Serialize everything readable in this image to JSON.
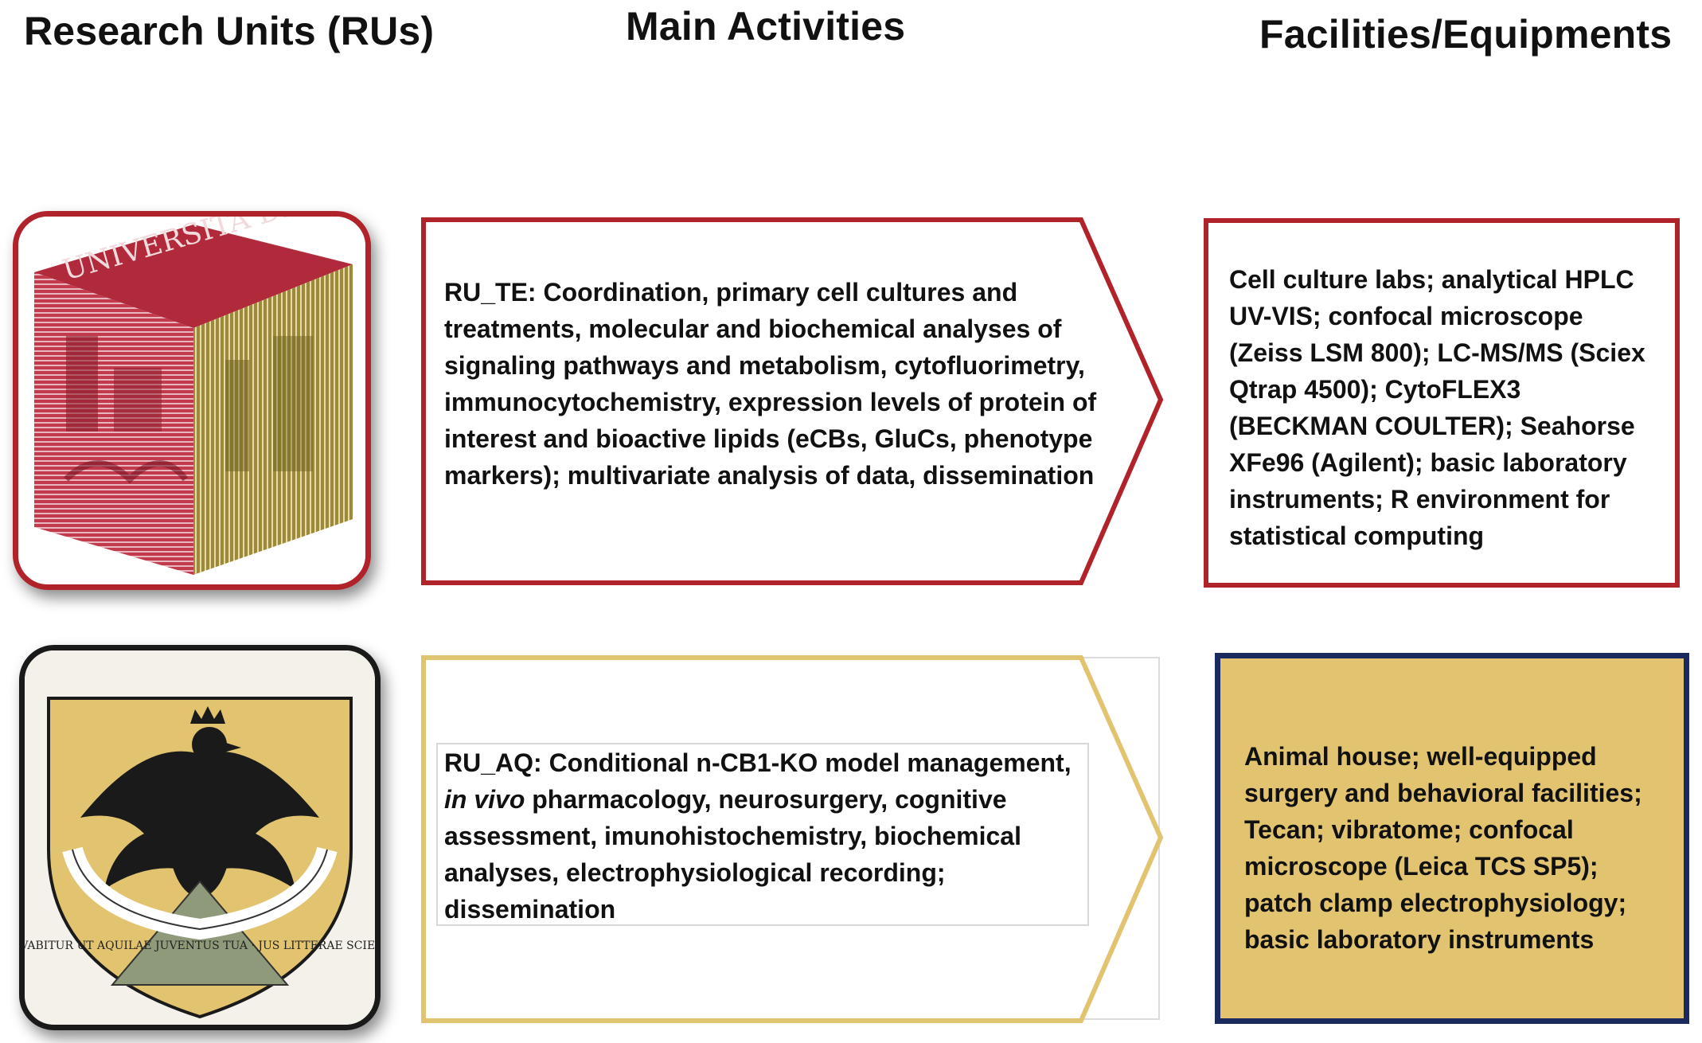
{
  "headers": {
    "research_units": "Research Units (RUs)",
    "main_activities": "Main Activities",
    "facilities": "Facilities/Equipments"
  },
  "colors": {
    "te_red": "#b0232a",
    "aq_gold": "#e2c470",
    "aq_navy": "#1b2a5e"
  },
  "logos": {
    "te": {
      "icon": "university-of-teramo-cube-logo",
      "text": "UNIVERSITA DEGLI STUDI DI TERAMO"
    },
    "aq": {
      "icon": "university-of-laquila-eagle-crest-logo",
      "text": "REVOVABITUR UT AQUILAE JUVENTUS TUA · JUS LITTERAE SCIENTIAE"
    }
  },
  "rows": [
    {
      "activity_prefix": "RU_TE: Coordination, primary cell cultures and treatments, molecular and biochemical analyses of signaling pathways and metabolism, cytofluorimetry, immunocytochemistry, expression levels of protein of interest and bioactive lipids (eCBs, GluCs, phenotype markers); multivariate analysis of data, dissemination",
      "facilities": "Cell culture labs; analytical HPLC UV-VIS; confocal microscope (Zeiss LSM 800); LC-MS/MS (Sciex Qtrap 4500); CytoFLEX3 (BECKMAN COULTER); Seahorse XFe96 (Agilent);  basic laboratory instruments; R environment for statistical computing"
    },
    {
      "activity_prefix": "RU_AQ: Conditional n-CB1-KO model management, ",
      "activity_italic": "in vivo",
      "activity_suffix": " pharmacology, neurosurgery, cognitive assessment, imunohistochemistry, biochemical analyses, electrophysiological recording; dissemination",
      "facilities": "Animal house; well-equipped surgery and behavioral facilities; Tecan; vibratome; confocal microscope (Leica TCS SP5); patch clamp electrophysiology; basic laboratory instruments"
    }
  ]
}
